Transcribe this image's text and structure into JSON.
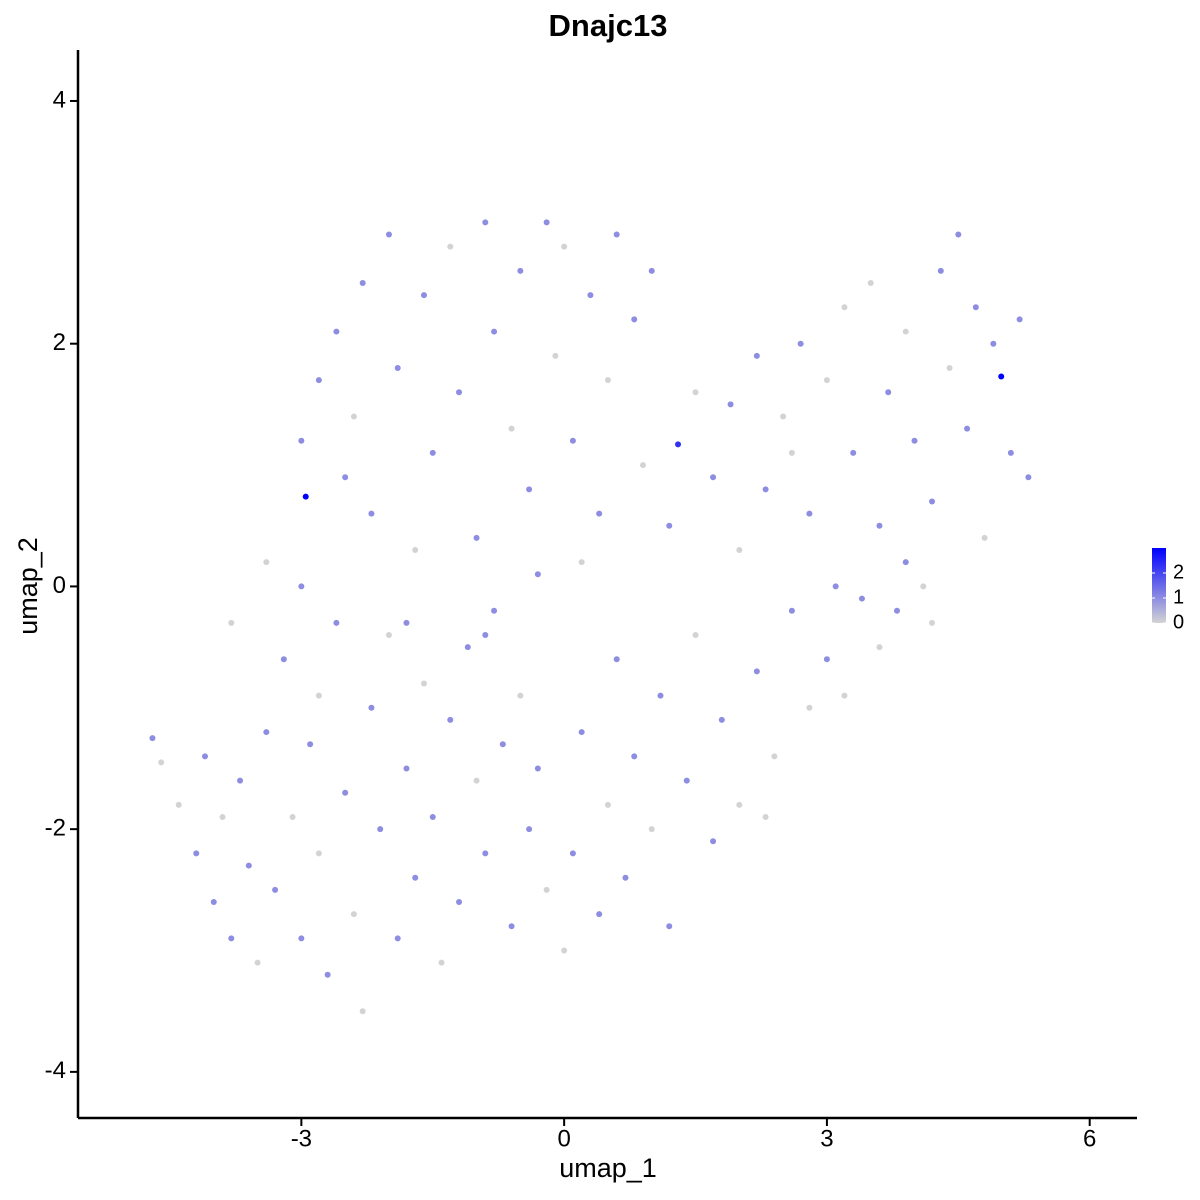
{
  "chart_data": {
    "type": "scatter",
    "title": "Dnajc13",
    "x_label": "umap_1",
    "y_label": "umap_2",
    "xlim": [
      -5.55,
      6.54
    ],
    "ylim": [
      -4.38,
      4.42
    ],
    "xticks": [
      -3,
      0,
      3,
      6
    ],
    "yticks": [
      -4,
      -2,
      0,
      2,
      4
    ],
    "colors": [
      "#d3d3d3",
      "#0000ff"
    ],
    "colorlim": [
      0,
      3
    ],
    "colorticks": [
      0,
      1,
      2
    ],
    "x": [
      -4.7,
      -4.6,
      -4.4,
      -4.2,
      -4.1,
      -4.0,
      -3.9,
      -3.8,
      -3.7,
      -3.6,
      -3.5,
      -3.4,
      -3.3,
      -3.2,
      -3.1,
      -3.0,
      -2.9,
      -2.8,
      -2.7,
      -2.6,
      -2.5,
      -2.4,
      -2.3,
      -2.2,
      -2.1,
      -2.0,
      -1.9,
      -1.8,
      -1.7,
      -1.6,
      -1.5,
      -1.4,
      -1.3,
      -1.2,
      -1.1,
      -1.0,
      -0.9,
      -0.8,
      -0.7,
      -0.6,
      -0.5,
      -0.4,
      -0.3,
      -0.2,
      -3.8,
      -3.4,
      -3.0,
      -2.8,
      0.0,
      0.1,
      0.2,
      0.4,
      0.5,
      0.6,
      0.7,
      0.8,
      1.0,
      1.1,
      1.2,
      1.4,
      1.5,
      1.7,
      1.8,
      2.0,
      2.2,
      2.4,
      2.6,
      2.8,
      3.0,
      3.2,
      3.4,
      3.6,
      3.9,
      4.2,
      2.3,
      -2.95,
      -3.0,
      -2.8,
      -2.6,
      -2.4,
      -2.3,
      -2.2,
      -2.0,
      -1.9,
      -1.7,
      -1.6,
      -1.5,
      -1.3,
      -1.2,
      -1.0,
      -0.9,
      -0.8,
      -0.6,
      -0.5,
      -0.4,
      -0.2,
      -0.1,
      0.0,
      0.1,
      0.3,
      0.4,
      0.5,
      0.6,
      0.8,
      0.9,
      1.0,
      -1.8,
      -0.9,
      0.2,
      -2.5,
      -0.3,
      1.3,
      1.2,
      1.5,
      1.7,
      1.9,
      2.0,
      2.2,
      2.3,
      2.5,
      2.7,
      2.8,
      3.0,
      3.1,
      3.2,
      3.3,
      3.5,
      3.6,
      3.7,
      3.9,
      4.0,
      4.2,
      4.3,
      4.4,
      4.5,
      4.6,
      4.7,
      4.8,
      4.9,
      4.99,
      5.1,
      5.2,
      5.3,
      4.1,
      3.8,
      2.6
    ],
    "y": [
      -1.25,
      -1.45,
      -1.8,
      -2.2,
      -1.4,
      -2.6,
      -1.9,
      -2.9,
      -1.6,
      -2.3,
      -3.1,
      -1.2,
      -2.5,
      -0.6,
      -1.9,
      -2.9,
      -1.3,
      -2.2,
      -3.2,
      -0.3,
      -1.7,
      -2.7,
      -3.5,
      -1.0,
      -2.0,
      -0.4,
      -2.9,
      -1.5,
      -2.4,
      -0.8,
      -1.9,
      -3.1,
      -1.1,
      -2.6,
      -0.5,
      -1.6,
      -2.2,
      -0.2,
      -1.3,
      -2.8,
      -0.9,
      -2.0,
      -1.5,
      -2.5,
      -0.3,
      0.2,
      0.0,
      -0.9,
      -3.0,
      -2.2,
      -1.2,
      -2.7,
      -1.8,
      -0.6,
      -2.4,
      -1.4,
      -2.0,
      -0.9,
      -2.8,
      -1.6,
      -0.4,
      -2.1,
      -1.1,
      -1.8,
      -0.7,
      -1.4,
      -0.2,
      -1.0,
      -0.6,
      -0.9,
      -0.1,
      -0.5,
      0.2,
      -0.3,
      -1.9,
      0.74,
      1.2,
      1.7,
      2.1,
      1.4,
      2.5,
      0.6,
      2.9,
      1.8,
      0.3,
      2.4,
      1.1,
      2.8,
      1.6,
      0.4,
      3.0,
      2.1,
      1.3,
      2.6,
      0.8,
      3.0,
      1.9,
      2.8,
      1.2,
      2.4,
      0.6,
      1.7,
      2.9,
      2.2,
      1.0,
      2.6,
      -0.3,
      -0.4,
      0.2,
      0.9,
      0.1,
      1.17,
      0.5,
      1.6,
      0.9,
      1.5,
      0.3,
      1.9,
      0.8,
      1.4,
      2.0,
      0.6,
      1.7,
      0.0,
      2.3,
      1.1,
      2.5,
      0.5,
      1.6,
      2.1,
      1.2,
      0.7,
      2.6,
      1.8,
      2.9,
      1.3,
      2.3,
      0.4,
      2.0,
      1.73,
      1.1,
      2.2,
      0.9,
      0.0,
      -0.2,
      1.1
    ],
    "values": [
      1,
      0,
      0,
      1,
      1,
      1,
      0,
      1,
      1,
      1,
      0,
      1,
      1,
      1,
      0,
      1,
      1,
      0,
      1,
      1,
      1,
      0,
      0,
      1,
      1,
      0,
      1,
      1,
      1,
      0,
      1,
      0,
      1,
      1,
      1,
      0,
      1,
      1,
      1,
      1,
      0,
      1,
      1,
      0,
      0,
      0,
      1,
      0,
      0,
      1,
      1,
      1,
      0,
      1,
      1,
      1,
      0,
      1,
      1,
      1,
      0,
      1,
      1,
      0,
      1,
      0,
      1,
      0,
      1,
      0,
      1,
      0,
      1,
      0,
      0,
      3,
      1,
      1,
      1,
      0,
      1,
      1,
      1,
      1,
      0,
      1,
      1,
      0,
      1,
      1,
      1,
      1,
      0,
      1,
      1,
      1,
      0,
      0,
      1,
      1,
      1,
      0,
      1,
      1,
      0,
      1,
      1,
      1,
      0,
      1,
      1,
      2.3,
      1,
      0,
      1,
      1,
      0,
      1,
      1,
      0,
      1,
      1,
      0,
      1,
      0,
      1,
      0,
      1,
      1,
      0,
      1,
      1,
      1,
      0,
      1,
      1,
      1,
      0,
      1,
      3,
      1,
      1,
      1,
      0,
      1,
      0
    ]
  }
}
